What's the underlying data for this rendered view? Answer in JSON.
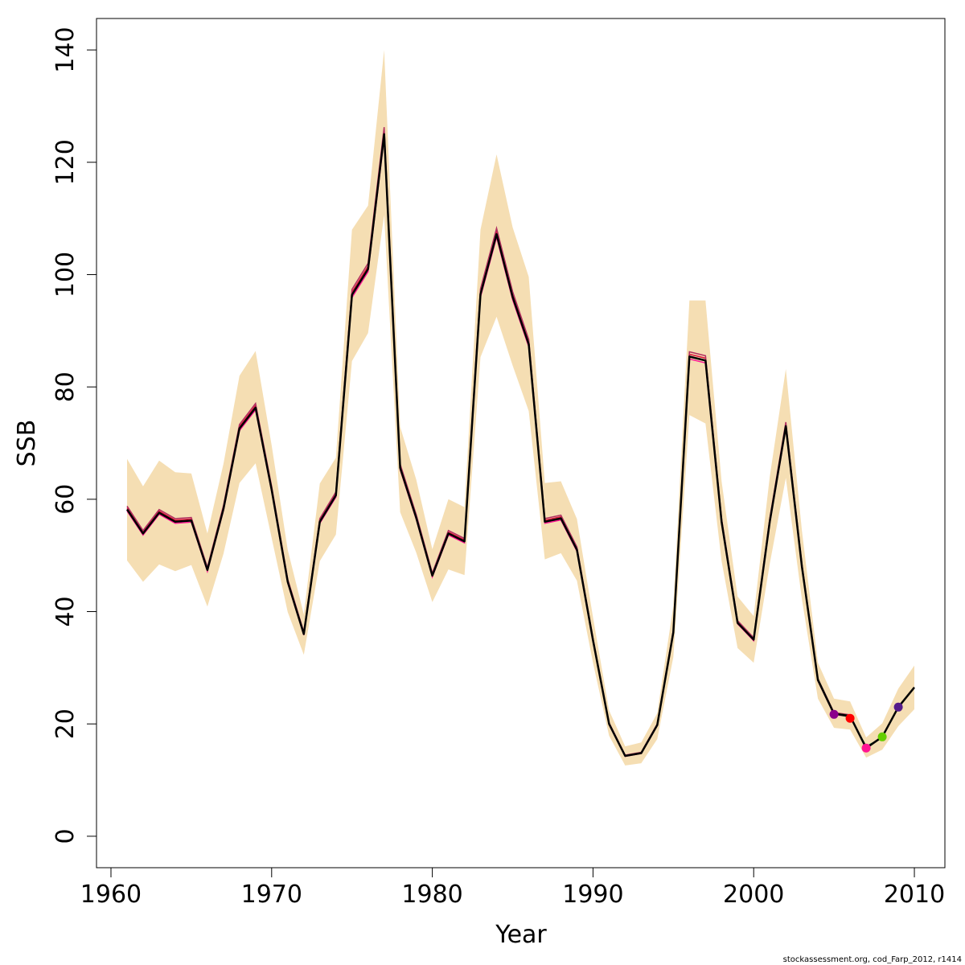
{
  "chart_data": {
    "type": "line",
    "xlabel": "Year",
    "ylabel": "SSB",
    "xlim": [
      1959.1,
      2011.9
    ],
    "ylim": [
      -5.6,
      145.6
    ],
    "xticks": [
      1960,
      1970,
      1980,
      1990,
      2000,
      2010
    ],
    "yticks": [
      0,
      20,
      40,
      60,
      80,
      100,
      120,
      140
    ],
    "band_color": "#f5deb3",
    "line_color": "#000000",
    "retro_color": "#dc143c",
    "years": [
      1961,
      1962,
      1963,
      1964,
      1965,
      1966,
      1967,
      1968,
      1969,
      1970,
      1971,
      1972,
      1973,
      1974,
      1975,
      1976,
      1977,
      1978,
      1979,
      1980,
      1981,
      1982,
      1983,
      1984,
      1985,
      1986,
      1987,
      1988,
      1989,
      1990,
      1991,
      1992,
      1993,
      1994,
      1995,
      1996,
      1997,
      1998,
      1999,
      2000,
      2001,
      2002,
      2003,
      2004,
      2005,
      2006,
      2007,
      2008,
      2009,
      2010
    ],
    "ssb": [
      58.2,
      53.9,
      57.6,
      56.0,
      56.2,
      47.4,
      58.3,
      72.6,
      76.3,
      61.7,
      45.3,
      36.0,
      56.0,
      60.7,
      96.4,
      101.0,
      125.0,
      65.6,
      56.7,
      46.4,
      53.9,
      52.5,
      96.5,
      107.2,
      96.0,
      87.6,
      56.0,
      56.6,
      51.0,
      34.9,
      20.0,
      14.3,
      14.8,
      19.8,
      36.3,
      85.4,
      84.7,
      56.0,
      38.0,
      35.0,
      56.0,
      73.0,
      48.0,
      27.8,
      21.8,
      21.4,
      15.7,
      17.7,
      23.0,
      26.5
    ],
    "lower": [
      49.1,
      45.3,
      48.4,
      47.2,
      48.3,
      40.9,
      50.3,
      62.9,
      66.4,
      53.1,
      39.9,
      32.3,
      49.0,
      53.7,
      84.6,
      89.6,
      110.6,
      57.7,
      50.5,
      41.7,
      47.5,
      46.5,
      85.3,
      92.5,
      83.8,
      75.7,
      49.3,
      50.4,
      45.5,
      30.9,
      17.9,
      12.6,
      13.0,
      17.3,
      31.9,
      75.0,
      73.5,
      49.0,
      33.5,
      30.9,
      48.5,
      63.8,
      42.2,
      24.5,
      19.3,
      19.0,
      14.0,
      15.4,
      19.6,
      22.6
    ],
    "upper": [
      67.2,
      62.3,
      66.9,
      64.8,
      64.6,
      53.9,
      66.3,
      82.0,
      86.4,
      69.6,
      51.0,
      39.5,
      62.8,
      67.4,
      108.0,
      112.3,
      140.0,
      72.9,
      63.5,
      51.1,
      60.0,
      58.6,
      108.0,
      121.4,
      108.4,
      99.6,
      62.9,
      63.2,
      56.5,
      39.0,
      22.4,
      16.0,
      16.7,
      21.9,
      41.0,
      95.4,
      95.4,
      63.2,
      42.7,
      39.2,
      64.0,
      83.2,
      54.4,
      30.9,
      24.5,
      24.0,
      17.6,
      20.1,
      26.3,
      30.4
    ],
    "retro_offsets": [
      -0.3,
      0.3,
      0.6
    ],
    "retro_series": [
      {
        "x": [
          2004,
          2005,
          2006
        ],
        "y": [
          28.0,
          21.9,
          21.5
        ],
        "color": "#006400"
      },
      {
        "x": [
          2004,
          2005,
          2006,
          2007,
          2008
        ],
        "y": [
          28.0,
          21.8,
          21.2,
          16.0,
          17.5
        ],
        "color": "#2e8b57"
      }
    ],
    "retro_points": [
      {
        "x": 2005,
        "y": 21.7,
        "color": "#8b008b"
      },
      {
        "x": 2006,
        "y": 21.0,
        "color": "#ff0000"
      },
      {
        "x": 2007,
        "y": 15.7,
        "color": "#ff1493"
      },
      {
        "x": 2008,
        "y": 17.7,
        "color": "#66cd00"
      },
      {
        "x": 2009,
        "y": 23.0,
        "color": "#551a8b"
      }
    ]
  },
  "footer": {
    "credit": "stockassessment.org, cod_Farp_2012, r1414"
  }
}
